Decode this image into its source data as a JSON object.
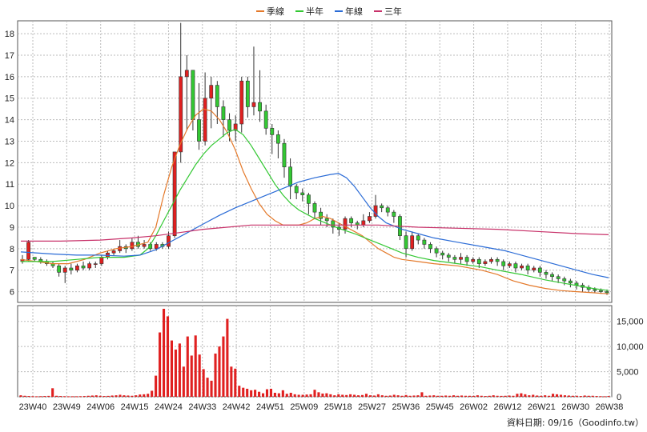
{
  "legend": [
    {
      "label": "季線",
      "color": "#e4792a"
    },
    {
      "label": "半年",
      "color": "#33c833"
    },
    {
      "label": "年線",
      "color": "#2a6bd6"
    },
    {
      "label": "三年",
      "color": "#c8326a"
    }
  ],
  "credit": "資料日期: 09/16（Goodinfo.tw）",
  "chart_data": [
    {
      "type": "candlestick",
      "title": "",
      "x_categories": [
        "23W40",
        "23W49",
        "24W06",
        "24W15",
        "24W24",
        "24W33",
        "24W42",
        "24W51",
        "25W09",
        "25W18",
        "25W27",
        "25W36",
        "25W45",
        "26W02",
        "26W12",
        "26W21",
        "26W30",
        "26W38"
      ],
      "y_ticks": [
        6,
        7,
        8,
        9,
        10,
        11,
        12,
        13,
        14,
        15,
        16,
        17,
        18
      ],
      "ylim": [
        5.5,
        18.6
      ],
      "y_axis_side": "left",
      "grid": true,
      "candle_colors": {
        "up": "#e02020",
        "down": "#33c833"
      },
      "price_range_note": "weekly K",
      "series": [
        {
          "name": "季線",
          "color": "#e4792a",
          "points": [
            [
              0,
              7.5
            ],
            [
              8,
              7.3
            ],
            [
              12,
              7.3
            ],
            [
              16,
              7.5
            ],
            [
              20,
              7.8
            ],
            [
              24,
              8.0
            ],
            [
              28,
              8.1
            ],
            [
              32,
              8.3
            ],
            [
              34,
              9.0
            ],
            [
              36,
              10.5
            ],
            [
              38,
              11.8
            ],
            [
              40,
              12.8
            ],
            [
              42,
              13.6
            ],
            [
              44,
              14.2
            ],
            [
              46,
              14.5
            ],
            [
              48,
              14.4
            ],
            [
              50,
              14.0
            ],
            [
              52,
              13.4
            ],
            [
              54,
              12.6
            ],
            [
              56,
              11.6
            ],
            [
              58,
              10.8
            ],
            [
              60,
              10.1
            ],
            [
              62,
              9.6
            ],
            [
              64,
              9.3
            ],
            [
              66,
              9.1
            ],
            [
              68,
              9.1
            ],
            [
              70,
              9.1
            ],
            [
              72,
              9.2
            ],
            [
              74,
              9.4
            ],
            [
              76,
              9.5
            ],
            [
              78,
              9.4
            ],
            [
              80,
              9.2
            ],
            [
              82,
              9.0
            ],
            [
              84,
              8.8
            ],
            [
              86,
              8.6
            ],
            [
              88,
              8.3
            ],
            [
              90,
              8.0
            ],
            [
              92,
              7.8
            ],
            [
              94,
              7.6
            ],
            [
              96,
              7.5
            ],
            [
              100,
              7.4
            ],
            [
              104,
              7.3
            ],
            [
              110,
              7.2
            ],
            [
              116,
              7.0
            ],
            [
              120,
              6.8
            ],
            [
              124,
              6.5
            ],
            [
              128,
              6.3
            ],
            [
              132,
              6.15
            ],
            [
              136,
              6.05
            ],
            [
              140,
              6.0
            ],
            [
              144,
              5.95
            ],
            [
              148,
              5.9
            ]
          ]
        },
        {
          "name": "半年",
          "color": "#33c833",
          "points": [
            [
              0,
              7.4
            ],
            [
              8,
              7.4
            ],
            [
              14,
              7.5
            ],
            [
              20,
              7.6
            ],
            [
              26,
              7.6
            ],
            [
              30,
              7.7
            ],
            [
              32,
              8.0
            ],
            [
              34,
              8.6
            ],
            [
              36,
              9.3
            ],
            [
              38,
              10.0
            ],
            [
              40,
              10.7
            ],
            [
              42,
              11.3
            ],
            [
              44,
              11.9
            ],
            [
              46,
              12.4
            ],
            [
              48,
              12.8
            ],
            [
              50,
              13.1
            ],
            [
              52,
              13.4
            ],
            [
              54,
              13.55
            ],
            [
              56,
              13.3
            ],
            [
              58,
              12.8
            ],
            [
              60,
              12.2
            ],
            [
              62,
              11.6
            ],
            [
              64,
              11.0
            ],
            [
              66,
              10.5
            ],
            [
              68,
              10.1
            ],
            [
              70,
              9.8
            ],
            [
              72,
              9.6
            ],
            [
              74,
              9.4
            ],
            [
              76,
              9.25
            ],
            [
              78,
              9.1
            ],
            [
              80,
              8.95
            ],
            [
              84,
              8.7
            ],
            [
              88,
              8.4
            ],
            [
              92,
              8.1
            ],
            [
              96,
              7.8
            ],
            [
              100,
              7.6
            ],
            [
              104,
              7.45
            ],
            [
              110,
              7.3
            ],
            [
              116,
              7.15
            ],
            [
              120,
              7.0
            ],
            [
              126,
              6.8
            ],
            [
              132,
              6.55
            ],
            [
              138,
              6.35
            ],
            [
              144,
              6.15
            ],
            [
              148,
              6.05
            ]
          ]
        },
        {
          "name": "年線",
          "color": "#2a6bd6",
          "points": [
            [
              0,
              7.85
            ],
            [
              8,
              7.75
            ],
            [
              14,
              7.7
            ],
            [
              20,
              7.7
            ],
            [
              26,
              7.65
            ],
            [
              30,
              7.7
            ],
            [
              34,
              7.95
            ],
            [
              38,
              8.35
            ],
            [
              42,
              8.75
            ],
            [
              46,
              9.15
            ],
            [
              50,
              9.55
            ],
            [
              54,
              9.9
            ],
            [
              58,
              10.2
            ],
            [
              62,
              10.5
            ],
            [
              66,
              10.8
            ],
            [
              70,
              11.1
            ],
            [
              74,
              11.3
            ],
            [
              78,
              11.45
            ],
            [
              80,
              11.5
            ],
            [
              82,
              11.3
            ],
            [
              84,
              10.9
            ],
            [
              86,
              10.4
            ],
            [
              88,
              9.9
            ],
            [
              90,
              9.5
            ],
            [
              92,
              9.2
            ],
            [
              96,
              8.9
            ],
            [
              100,
              8.7
            ],
            [
              104,
              8.5
            ],
            [
              110,
              8.3
            ],
            [
              116,
              8.1
            ],
            [
              122,
              7.9
            ],
            [
              128,
              7.6
            ],
            [
              134,
              7.3
            ],
            [
              140,
              7.0
            ],
            [
              144,
              6.8
            ],
            [
              148,
              6.65
            ]
          ]
        },
        {
          "name": "三年",
          "color": "#c8326a",
          "points": [
            [
              0,
              8.35
            ],
            [
              10,
              8.35
            ],
            [
              20,
              8.4
            ],
            [
              28,
              8.5
            ],
            [
              34,
              8.6
            ],
            [
              40,
              8.75
            ],
            [
              46,
              8.9
            ],
            [
              52,
              9.0
            ],
            [
              58,
              9.1
            ],
            [
              64,
              9.1
            ],
            [
              70,
              9.1
            ],
            [
              80,
              9.1
            ],
            [
              90,
              9.1
            ],
            [
              100,
              9.0
            ],
            [
              110,
              8.95
            ],
            [
              120,
              8.9
            ],
            [
              130,
              8.8
            ],
            [
              140,
              8.7
            ],
            [
              148,
              8.65
            ]
          ]
        }
      ]
    },
    {
      "type": "bar",
      "title": "",
      "y_ticks": [
        0,
        5000,
        10000,
        15000
      ],
      "y_tick_labels": [
        "0",
        "5,000",
        "10,000",
        "15,000"
      ],
      "ylim": [
        0,
        17500
      ],
      "y_axis_side": "right",
      "bar_color": "#e02020",
      "values_note": "weekly volume, tall spikes around 24W15–24W30",
      "values": [
        300,
        200,
        150,
        120,
        100,
        120,
        150,
        180,
        1700,
        200,
        150,
        120,
        100,
        100,
        100,
        120,
        150,
        200,
        250,
        300,
        200,
        150,
        180,
        250,
        300,
        400,
        300,
        250,
        200,
        300,
        450,
        500,
        600,
        1200,
        4200,
        12800,
        17500,
        16000,
        11200,
        9400,
        10600,
        6000,
        12000,
        8200,
        12200,
        8400,
        5500,
        3800,
        3200,
        8600,
        10000,
        12000,
        15500,
        6000,
        5600,
        2200,
        1800,
        1600,
        1300,
        1400,
        1000,
        700,
        1500,
        1600,
        800,
        700,
        1300,
        600,
        800,
        500,
        400,
        400,
        450,
        500,
        1400,
        900,
        650,
        700,
        500,
        300,
        500,
        400,
        350,
        500,
        400,
        300,
        350,
        600,
        300,
        250,
        500,
        300,
        200,
        250,
        400,
        300,
        200,
        350,
        200,
        250,
        300,
        900,
        200,
        250,
        300,
        200,
        200,
        250,
        200,
        300,
        200,
        250,
        200,
        200,
        180,
        300,
        200,
        150,
        200,
        300,
        200,
        180,
        200,
        250,
        200,
        600,
        700,
        500,
        300,
        400,
        250,
        200,
        300,
        200,
        600,
        500,
        400,
        300,
        250,
        200,
        200,
        150,
        250,
        200,
        200,
        150,
        120,
        100,
        150
      ]
    }
  ],
  "ohlc_note": "approximate weekly candles, prices in NTD",
  "candles": [
    [
      7.4,
      7.5,
      7.7,
      7.3
    ],
    [
      7.5,
      8.3,
      8.4,
      7.4
    ],
    [
      7.6,
      7.5,
      7.6,
      7.4
    ],
    [
      7.5,
      7.4,
      7.6,
      7.3
    ],
    [
      7.4,
      7.3,
      7.5,
      7.2
    ],
    [
      7.3,
      7.2,
      7.4,
      7.1
    ],
    [
      7.2,
      6.9,
      7.3,
      6.7
    ],
    [
      6.9,
      7.1,
      7.2,
      6.4
    ],
    [
      7.1,
      7.0,
      7.3,
      6.8
    ],
    [
      7.0,
      7.2,
      7.3,
      6.9
    ],
    [
      7.2,
      7.1,
      7.4,
      7.0
    ],
    [
      7.1,
      7.3,
      7.4,
      7.0
    ],
    [
      7.3,
      7.3,
      7.4,
      7.1
    ],
    [
      7.3,
      7.6,
      7.7,
      7.2
    ],
    [
      7.6,
      7.8,
      7.9,
      7.5
    ],
    [
      7.8,
      7.9,
      8.0,
      7.7
    ],
    [
      7.9,
      8.1,
      8.4,
      7.8
    ],
    [
      8.1,
      8.0,
      8.2,
      7.8
    ],
    [
      8.0,
      8.3,
      8.5,
      7.9
    ],
    [
      8.3,
      8.1,
      8.6,
      8.0
    ],
    [
      8.1,
      8.2,
      8.4,
      8.0
    ],
    [
      8.2,
      8.0,
      8.3,
      7.9
    ],
    [
      8.0,
      8.2,
      8.3,
      7.9
    ],
    [
      8.2,
      8.1,
      8.3,
      8.0
    ],
    [
      8.1,
      8.6,
      8.8,
      8.0
    ],
    [
      8.6,
      12.5,
      12.5,
      8.5
    ],
    [
      12.5,
      16.0,
      18.5,
      12.0
    ],
    [
      16.0,
      16.3,
      17.0,
      13.5
    ],
    [
      16.3,
      14.0,
      16.0,
      13.5
    ],
    [
      14.0,
      13.0,
      15.7,
      12.6
    ],
    [
      13.0,
      15.0,
      16.2,
      12.8
    ],
    [
      15.0,
      15.6,
      16.0,
      13.6
    ],
    [
      15.6,
      14.6,
      15.8,
      13.8
    ],
    [
      14.6,
      14.0,
      14.9,
      13.2
    ],
    [
      14.0,
      13.5,
      14.3,
      13.0
    ],
    [
      13.5,
      13.8,
      14.2,
      13.0
    ],
    [
      13.8,
      15.8,
      16.0,
      13.4
    ],
    [
      15.8,
      14.6,
      16.0,
      14.1
    ],
    [
      14.6,
      14.8,
      17.4,
      14.2
    ],
    [
      14.8,
      14.4,
      16.3,
      13.9
    ],
    [
      14.4,
      13.6,
      14.7,
      13.3
    ],
    [
      13.6,
      13.3,
      13.8,
      12.4
    ],
    [
      13.3,
      12.9,
      13.5,
      12.2
    ],
    [
      12.9,
      11.8,
      13.1,
      11.3
    ],
    [
      11.8,
      10.9,
      12.2,
      10.3
    ],
    [
      10.9,
      10.6,
      11.0,
      10.3
    ],
    [
      10.6,
      10.5,
      10.8,
      10.2
    ],
    [
      10.5,
      10.1,
      10.6,
      9.6
    ],
    [
      10.1,
      9.7,
      10.2,
      9.4
    ],
    [
      9.7,
      9.4,
      9.9,
      9.1
    ],
    [
      9.4,
      9.3,
      9.6,
      9.0
    ],
    [
      9.3,
      9.0,
      9.4,
      8.7
    ],
    [
      9.0,
      8.9,
      9.2,
      8.6
    ],
    [
      8.9,
      9.4,
      9.5,
      8.7
    ],
    [
      9.4,
      9.2,
      9.5,
      9.0
    ],
    [
      9.2,
      9.1,
      9.3,
      8.9
    ],
    [
      9.1,
      9.3,
      9.6,
      9.0
    ],
    [
      9.3,
      9.5,
      9.7,
      9.2
    ],
    [
      9.5,
      10.0,
      10.5,
      9.4
    ],
    [
      10.0,
      9.9,
      10.1,
      9.7
    ],
    [
      9.9,
      9.7,
      10.0,
      9.5
    ],
    [
      9.7,
      9.5,
      9.8,
      9.2
    ],
    [
      9.5,
      8.6,
      9.6,
      8.4
    ],
    [
      8.6,
      8.0,
      8.8,
      7.6
    ],
    [
      8.0,
      8.6,
      8.8,
      7.9
    ],
    [
      8.6,
      8.4,
      8.7,
      8.2
    ],
    [
      8.4,
      8.2,
      8.5,
      8.0
    ],
    [
      8.2,
      8.0,
      8.3,
      7.8
    ],
    [
      8.0,
      7.8,
      8.1,
      7.6
    ],
    [
      7.8,
      7.7,
      7.9,
      7.5
    ],
    [
      7.7,
      7.6,
      7.8,
      7.4
    ],
    [
      7.6,
      7.5,
      7.7,
      7.3
    ],
    [
      7.5,
      7.6,
      7.8,
      7.3
    ],
    [
      7.6,
      7.4,
      7.7,
      7.2
    ],
    [
      7.4,
      7.5,
      7.6,
      7.3
    ],
    [
      7.5,
      7.3,
      7.6,
      7.1
    ],
    [
      7.3,
      7.4,
      7.5,
      7.2
    ],
    [
      7.4,
      7.5,
      7.6,
      7.3
    ],
    [
      7.5,
      7.4,
      7.6,
      7.2
    ],
    [
      7.4,
      7.2,
      7.5,
      7.0
    ],
    [
      7.2,
      7.3,
      7.4,
      7.1
    ],
    [
      7.3,
      7.1,
      7.4,
      6.9
    ],
    [
      7.1,
      7.2,
      7.3,
      7.0
    ],
    [
      7.2,
      7.0,
      7.3,
      6.8
    ],
    [
      7.0,
      7.1,
      7.2,
      6.9
    ],
    [
      7.1,
      6.9,
      7.2,
      6.7
    ],
    [
      6.9,
      6.8,
      7.0,
      6.6
    ],
    [
      6.8,
      6.7,
      6.9,
      6.5
    ],
    [
      6.7,
      6.6,
      6.8,
      6.4
    ],
    [
      6.6,
      6.5,
      6.7,
      6.3
    ],
    [
      6.5,
      6.4,
      6.6,
      6.2
    ],
    [
      6.4,
      6.3,
      6.5,
      6.1
    ],
    [
      6.3,
      6.2,
      6.4,
      6.0
    ],
    [
      6.2,
      6.1,
      6.3,
      6.0
    ],
    [
      6.1,
      6.05,
      6.2,
      5.95
    ],
    [
      6.05,
      6.0,
      6.15,
      5.9
    ],
    [
      6.0,
      5.95,
      6.1,
      5.85
    ]
  ]
}
